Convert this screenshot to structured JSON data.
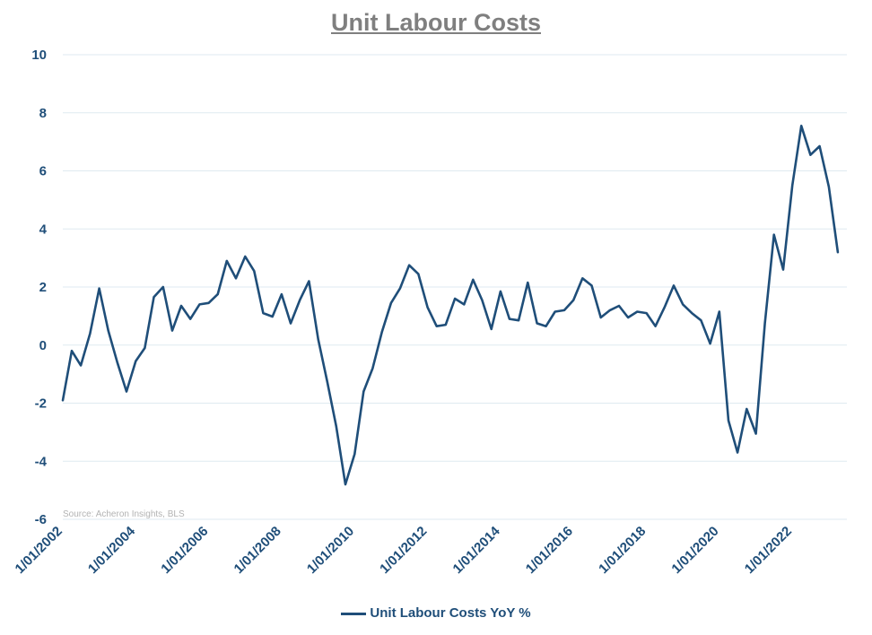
{
  "chart_data": {
    "type": "line",
    "title": "Unit Labour Costs",
    "source_note": "Source: Acheron Insights, BLS",
    "xlabel": "",
    "ylabel": "",
    "ylim": [
      -6,
      10
    ],
    "yticks": [
      10,
      8,
      6,
      4,
      2,
      0,
      -2,
      -4,
      -6
    ],
    "xlim": [
      "2002-01-01",
      "2023-07-01"
    ],
    "xtick_labels": [
      "1/01/2002",
      "1/01/2004",
      "1/01/2006",
      "1/01/2008",
      "1/01/2010",
      "1/01/2012",
      "1/01/2014",
      "1/01/2016",
      "1/01/2018",
      "1/01/2020",
      "1/01/2022"
    ],
    "grid": true,
    "legend_position": "bottom",
    "series": [
      {
        "name": "Unit Labour Costs YoY %",
        "color": "#1f4e79",
        "x": [
          "2002-01-01",
          "2002-04-01",
          "2002-07-01",
          "2002-10-01",
          "2003-01-01",
          "2003-04-01",
          "2003-07-01",
          "2003-10-01",
          "2004-01-01",
          "2004-04-01",
          "2004-07-01",
          "2004-10-01",
          "2005-01-01",
          "2005-04-01",
          "2005-07-01",
          "2005-10-01",
          "2006-01-01",
          "2006-04-01",
          "2006-07-01",
          "2006-10-01",
          "2007-01-01",
          "2007-04-01",
          "2007-07-01",
          "2007-10-01",
          "2008-01-01",
          "2008-04-01",
          "2008-07-01",
          "2008-10-01",
          "2009-01-01",
          "2009-04-01",
          "2009-07-01",
          "2009-10-01",
          "2010-01-01",
          "2010-04-01",
          "2010-07-01",
          "2010-10-01",
          "2011-01-01",
          "2011-04-01",
          "2011-07-01",
          "2011-10-01",
          "2012-01-01",
          "2012-04-01",
          "2012-07-01",
          "2012-10-01",
          "2013-01-01",
          "2013-04-01",
          "2013-07-01",
          "2013-10-01",
          "2014-01-01",
          "2014-04-01",
          "2014-07-01",
          "2014-10-01",
          "2015-01-01",
          "2015-04-01",
          "2015-07-01",
          "2015-10-01",
          "2016-01-01",
          "2016-04-01",
          "2016-07-01",
          "2016-10-01",
          "2017-01-01",
          "2017-04-01",
          "2017-07-01",
          "2017-10-01",
          "2018-01-01",
          "2018-04-01",
          "2018-07-01",
          "2018-10-01",
          "2019-01-01",
          "2019-04-01",
          "2019-07-01",
          "2019-10-01",
          "2020-01-01",
          "2020-04-01",
          "2020-07-01",
          "2020-10-01",
          "2021-01-01",
          "2021-04-01",
          "2021-07-01",
          "2021-10-01",
          "2022-01-01",
          "2022-04-01",
          "2022-07-01",
          "2022-10-01",
          "2023-01-01",
          "2023-04-01"
        ],
        "values": [
          -1.9,
          -0.2,
          -0.7,
          0.4,
          1.95,
          0.5,
          -0.6,
          -1.6,
          -0.55,
          -0.1,
          1.65,
          2.0,
          0.5,
          1.35,
          0.9,
          1.4,
          1.45,
          1.75,
          2.9,
          2.3,
          3.05,
          2.55,
          1.1,
          0.98,
          1.75,
          0.75,
          1.55,
          2.2,
          0.2,
          -1.25,
          -2.8,
          -4.8,
          -3.75,
          -1.6,
          -0.8,
          0.45,
          1.45,
          1.95,
          2.75,
          2.45,
          1.3,
          0.65,
          0.7,
          1.6,
          1.4,
          2.25,
          1.55,
          0.55,
          1.85,
          0.9,
          0.85,
          2.15,
          0.75,
          0.65,
          1.15,
          1.2,
          1.55,
          2.3,
          2.05,
          0.95,
          1.2,
          1.35,
          0.95,
          1.15,
          1.1,
          0.65,
          1.3,
          2.05,
          1.4,
          1.1,
          0.85,
          0.05,
          1.15,
          -2.6,
          -3.7,
          -2.2,
          -3.05,
          0.75,
          3.8,
          2.6,
          5.5,
          7.55,
          6.55,
          6.85,
          5.45,
          3.2
        ]
      }
    ]
  }
}
